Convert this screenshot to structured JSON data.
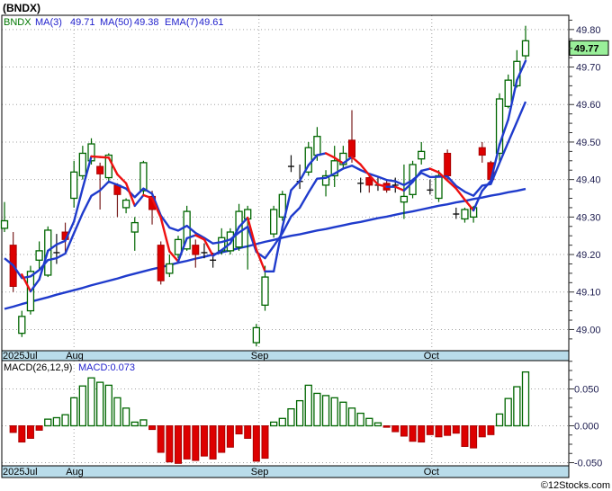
{
  "title": "(BNDX)",
  "watermark": "©12Stocks.com",
  "main_legend": {
    "symbol": "BNDX",
    "items": [
      {
        "label": "MA(3)",
        "value": "49.71"
      },
      {
        "label": "MA(50)",
        "value": "49.38"
      },
      {
        "label": "EMA(7)",
        "value": "49.61"
      }
    ]
  },
  "macd_legend": {
    "label": "MACD(26,12,9)",
    "value": "MACD:0.073"
  },
  "price_axis": {
    "major_labels": [
      49.8,
      49.7,
      49.6,
      49.5,
      49.4,
      49.3,
      49.2,
      49.1,
      49.0
    ],
    "minor_step": 0.025,
    "last_price_label": "49.77"
  },
  "macd_axis": {
    "major_labels": [
      0.05,
      0.0,
      -0.05
    ],
    "minor_step": 0.0125
  },
  "months": [
    {
      "label": "2025Jul",
      "grid_index": null
    },
    {
      "label": "Aug",
      "grid_index": 8.0
    },
    {
      "label": "Sep",
      "grid_index": 29.3
    },
    {
      "label": "Oct",
      "grid_index": 49.2
    }
  ],
  "colors": {
    "up": "#006600",
    "down_fill": "#dd0000",
    "down_stroke": "#aa0000",
    "down_wick": "#7a1f1f",
    "neutral": "#111111",
    "ma_blue": "#1f3bcc",
    "ma_red": "#ee1111",
    "band": "#b9dcea",
    "grid": "#a0a0a0",
    "legend_blue": "#2222cc",
    "legend_green": "#007700",
    "badge_bg": "#99ef99",
    "axis_text": "#1c1c4e",
    "border": "#000000"
  },
  "chart_data": {
    "type": "candlestick_with_macd_histogram",
    "symbol": "BNDX",
    "title": "(BNDX)",
    "price_ylim": [
      48.95,
      49.84
    ],
    "macd_ylim": [
      -0.054,
      0.088
    ],
    "x_months": [
      "2025Jul",
      "Aug",
      "Sep",
      "Oct"
    ],
    "overlays": [
      {
        "name": "MA(3)",
        "last": 49.71,
        "style": "computed from closes, blue rising / red falling"
      },
      {
        "name": "MA(50)",
        "last": 49.38,
        "style": "blue, values stored in ma50"
      },
      {
        "name": "EMA(7)",
        "last": 49.61,
        "style": "blue, computed from closes with ema7_seed"
      }
    ],
    "last_close": 49.77,
    "macd_last": 0.073,
    "candles_ohlc": [
      [
        49.27,
        49.34,
        49.26,
        49.29
      ],
      [
        49.225,
        49.26,
        49.1,
        49.115
      ],
      [
        48.99,
        49.05,
        48.98,
        49.035
      ],
      [
        49.05,
        49.17,
        49.04,
        49.155
      ],
      [
        49.185,
        49.235,
        49.16,
        49.21
      ],
      [
        49.145,
        49.275,
        49.14,
        49.265
      ],
      [
        49.215,
        49.255,
        49.175,
        49.205
      ],
      [
        49.26,
        49.285,
        49.2,
        49.24
      ],
      [
        49.35,
        49.45,
        49.325,
        49.42
      ],
      [
        49.41,
        49.49,
        49.4,
        49.47
      ],
      [
        49.45,
        49.51,
        49.44,
        49.495
      ],
      [
        49.435,
        49.445,
        49.32,
        49.415
      ],
      [
        49.405,
        49.47,
        49.39,
        49.465
      ],
      [
        49.385,
        49.39,
        49.3,
        49.36
      ],
      [
        49.325,
        49.35,
        49.31,
        49.345
      ],
      [
        49.26,
        49.3,
        49.21,
        49.285
      ],
      [
        49.37,
        49.45,
        49.36,
        49.445
      ],
      [
        49.355,
        49.37,
        49.28,
        49.32
      ],
      [
        49.225,
        49.235,
        49.12,
        49.13
      ],
      [
        49.15,
        49.2,
        49.14,
        49.175
      ],
      [
        49.2,
        49.25,
        49.19,
        49.24
      ],
      [
        49.215,
        49.33,
        49.21,
        49.315
      ],
      [
        49.225,
        49.24,
        49.165,
        49.2
      ],
      [
        49.215,
        49.23,
        49.19,
        49.205
      ],
      [
        49.19,
        49.205,
        49.165,
        49.185
      ],
      [
        49.21,
        49.27,
        49.2,
        49.245
      ],
      [
        49.21,
        49.27,
        49.2,
        49.26
      ],
      [
        49.22,
        49.335,
        49.21,
        49.315
      ],
      [
        49.295,
        49.33,
        49.16,
        49.32
      ],
      [
        48.965,
        49.015,
        48.955,
        49.005
      ],
      [
        49.065,
        49.17,
        49.05,
        49.14
      ],
      [
        49.255,
        49.33,
        49.245,
        49.32
      ],
      [
        49.3,
        49.37,
        49.29,
        49.36
      ],
      [
        49.445,
        49.465,
        49.42,
        49.435
      ],
      [
        49.405,
        49.44,
        49.375,
        49.395
      ],
      [
        49.42,
        49.5,
        49.41,
        49.485
      ],
      [
        49.465,
        49.54,
        49.45,
        49.515
      ],
      [
        49.385,
        49.425,
        49.355,
        49.41
      ],
      [
        49.41,
        49.49,
        49.38,
        49.45
      ],
      [
        49.44,
        49.49,
        49.43,
        49.47
      ],
      [
        49.505,
        49.585,
        49.445,
        49.46
      ],
      [
        49.4,
        49.405,
        49.365,
        49.39
      ],
      [
        49.405,
        49.41,
        49.365,
        49.385
      ],
      [
        49.395,
        49.405,
        49.37,
        49.385
      ],
      [
        49.39,
        49.4,
        49.365,
        49.372
      ],
      [
        49.395,
        49.405,
        49.365,
        49.385
      ],
      [
        49.34,
        49.44,
        49.295,
        49.355
      ],
      [
        49.36,
        49.45,
        49.35,
        49.44
      ],
      [
        49.455,
        49.5,
        49.44,
        49.475
      ],
      [
        49.38,
        49.4,
        49.36,
        49.372
      ],
      [
        49.35,
        49.425,
        49.34,
        49.41
      ],
      [
        49.47,
        49.48,
        49.4,
        49.41
      ],
      [
        49.315,
        49.325,
        49.295,
        49.308
      ],
      [
        49.295,
        49.325,
        49.285,
        49.32
      ],
      [
        49.3,
        49.33,
        49.285,
        49.325
      ],
      [
        49.485,
        49.5,
        49.445,
        49.465
      ],
      [
        49.445,
        49.45,
        49.39,
        49.4
      ],
      [
        49.47,
        49.63,
        49.445,
        49.615
      ],
      [
        49.595,
        49.68,
        49.59,
        49.665
      ],
      [
        49.65,
        49.745,
        49.645,
        49.715
      ],
      [
        49.73,
        49.81,
        49.72,
        49.77
      ]
    ],
    "ma50": [
      49.055,
      49.061,
      49.068,
      49.074,
      49.08,
      49.086,
      49.093,
      49.099,
      49.105,
      49.111,
      49.118,
      49.124,
      49.13,
      49.136,
      49.143,
      49.149,
      49.155,
      49.161,
      49.166,
      49.172,
      49.178,
      49.183,
      49.189,
      49.194,
      49.2,
      49.206,
      49.211,
      49.217,
      49.222,
      49.228,
      49.234,
      49.239,
      49.245,
      49.25,
      49.254,
      49.259,
      49.264,
      49.268,
      49.273,
      49.278,
      49.283,
      49.287,
      49.292,
      49.297,
      49.301,
      49.306,
      49.311,
      49.315,
      49.32,
      49.325,
      49.33,
      49.334,
      49.339,
      49.343,
      49.348,
      49.352,
      49.357,
      49.361,
      49.366,
      49.37,
      49.375
    ],
    "ema7_seed": 49.19,
    "macd_hist": [
      null,
      -0.009,
      -0.022,
      -0.017,
      -0.006,
      0.009,
      0.011,
      0.015,
      0.038,
      0.054,
      0.065,
      0.059,
      0.055,
      0.038,
      0.024,
      0.005,
      0.008,
      -0.005,
      -0.036,
      -0.049,
      -0.051,
      -0.045,
      -0.047,
      -0.041,
      -0.045,
      -0.036,
      -0.029,
      -0.011,
      -0.017,
      -0.048,
      -0.044,
      0.005,
      0.01,
      0.023,
      0.034,
      0.055,
      0.044,
      0.041,
      0.038,
      0.032,
      0.024,
      0.017,
      0.01,
      0.004,
      -0.002,
      -0.008,
      -0.014,
      -0.021,
      -0.022,
      -0.012,
      -0.015,
      -0.013,
      -0.01,
      -0.028,
      -0.03,
      -0.015,
      -0.012,
      0.016,
      0.037,
      0.053,
      0.073
    ]
  }
}
